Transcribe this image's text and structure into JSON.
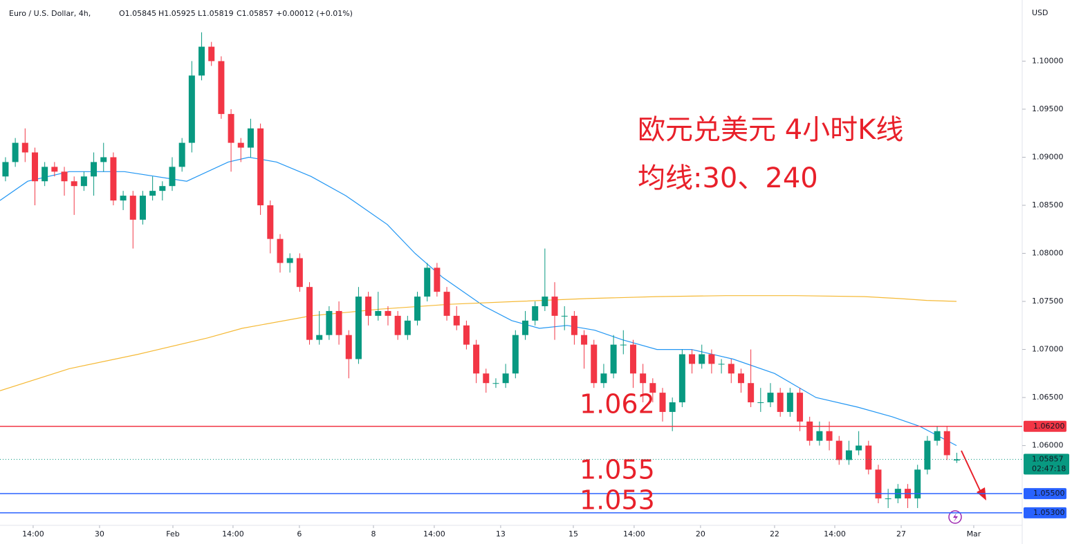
{
  "chart_data": {
    "type": "candlestick",
    "symbol": "Euro / U.S. Dollar, 4h,",
    "ohlc_header": [
      "O1.05845",
      "H1.05925",
      "L1.05819",
      "C1.05857",
      "+0.00012 (+0.01%)"
    ],
    "currency": "USD",
    "title": "欧元兑美元 4小时K线",
    "subtitle": "均线:30、240",
    "up_color": "#089981",
    "down_color": "#f23645",
    "open": [
      1.088,
      1.0895,
      1.0915,
      1.0905,
      1.0875,
      1.089,
      1.0885,
      1.0875,
      1.087,
      1.088,
      1.0895,
      1.09,
      1.0855,
      1.086,
      1.0835,
      1.086,
      1.0865,
      1.087,
      1.089,
      1.0915,
      1.0985,
      1.1015,
      1.1,
      1.0945,
      1.0915,
      1.091,
      1.093,
      1.085,
      1.0815,
      1.079,
      1.0795,
      1.0765,
      1.071,
      1.0715,
      1.074,
      1.0715,
      1.069,
      1.0755,
      1.0735,
      1.074,
      1.0735,
      1.0715,
      1.073,
      1.0755,
      1.0785,
      1.076,
      1.0735,
      1.0725,
      1.0705,
      1.0675,
      1.0665,
      1.0665,
      1.0675,
      1.0715,
      1.073,
      1.0745,
      1.0755,
      1.0735,
      1.0735,
      1.0715,
      1.0705,
      1.0665,
      1.0675,
      1.0705,
      1.0705,
      1.0675,
      1.0665,
      1.0655,
      1.0635,
      1.0645,
      1.0695,
      1.0685,
      1.0695,
      1.0685,
      1.0685,
      1.0675,
      1.0665,
      1.0645,
      1.0645,
      1.0655,
      1.0635,
      1.0655,
      1.0625,
      1.0605,
      1.0615,
      1.0605,
      1.0585,
      1.0595,
      1.06,
      1.0575,
      1.0545,
      1.0545,
      1.0555,
      1.0545,
      1.0575,
      1.0605,
      1.0615,
      1.05845
    ],
    "high": [
      1.09,
      1.092,
      1.093,
      1.091,
      1.0895,
      1.0895,
      1.089,
      1.088,
      1.0885,
      1.0905,
      1.0915,
      1.0905,
      1.0865,
      1.0865,
      1.0865,
      1.088,
      1.0875,
      1.09,
      1.092,
      1.1,
      1.103,
      1.102,
      1.1005,
      1.095,
      1.092,
      1.094,
      1.0935,
      1.0855,
      1.082,
      1.08,
      1.08,
      1.077,
      1.074,
      1.0745,
      1.075,
      1.072,
      1.0765,
      1.076,
      1.076,
      1.0745,
      1.074,
      1.0735,
      1.076,
      1.079,
      1.079,
      1.0765,
      1.0745,
      1.073,
      1.071,
      1.068,
      1.067,
      1.0685,
      1.072,
      1.074,
      1.075,
      1.0805,
      1.077,
      1.0745,
      1.074,
      1.072,
      1.071,
      1.0685,
      1.0715,
      1.072,
      1.071,
      1.0685,
      1.067,
      1.066,
      1.065,
      1.07,
      1.07,
      1.0705,
      1.07,
      1.069,
      1.069,
      1.068,
      1.07,
      1.066,
      1.0665,
      1.066,
      1.066,
      1.066,
      1.063,
      1.0625,
      1.0625,
      1.061,
      1.0605,
      1.0615,
      1.0605,
      1.058,
      1.0555,
      1.056,
      1.056,
      1.058,
      1.061,
      1.062,
      1.062,
      1.05925
    ],
    "low": [
      1.0875,
      1.089,
      1.0895,
      1.085,
      1.087,
      1.088,
      1.086,
      1.084,
      1.0865,
      1.086,
      1.0885,
      1.085,
      1.0845,
      1.0805,
      1.083,
      1.0855,
      1.0855,
      1.0865,
      1.0885,
      1.0905,
      1.098,
      1.0995,
      1.094,
      1.0885,
      1.0895,
      1.09,
      1.084,
      1.08,
      1.078,
      1.078,
      1.076,
      1.0705,
      1.0705,
      1.071,
      1.0705,
      1.067,
      1.0685,
      1.0725,
      1.073,
      1.0725,
      1.071,
      1.071,
      1.0725,
      1.075,
      1.0755,
      1.073,
      1.072,
      1.07,
      1.0665,
      1.0655,
      1.066,
      1.066,
      1.067,
      1.071,
      1.0725,
      1.074,
      1.071,
      1.072,
      1.0705,
      1.068,
      1.066,
      1.066,
      1.067,
      1.0695,
      1.066,
      1.0645,
      1.0645,
      1.0625,
      1.0615,
      1.064,
      1.0675,
      1.068,
      1.0675,
      1.0675,
      1.0665,
      1.0655,
      1.064,
      1.0635,
      1.064,
      1.063,
      1.063,
      1.0615,
      1.06,
      1.06,
      1.0595,
      1.058,
      1.058,
      1.059,
      1.057,
      1.054,
      1.0535,
      1.054,
      1.0535,
      1.0535,
      1.057,
      1.06,
      1.0585,
      1.05819
    ],
    "close": [
      1.0895,
      1.0915,
      1.0905,
      1.0875,
      1.089,
      1.0885,
      1.0875,
      1.087,
      1.088,
      1.0895,
      1.09,
      1.0855,
      1.086,
      1.0835,
      1.086,
      1.0865,
      1.087,
      1.089,
      1.0915,
      1.0985,
      1.1015,
      1.1,
      1.0945,
      1.0915,
      1.091,
      1.093,
      1.085,
      1.0815,
      1.079,
      1.0795,
      1.0765,
      1.071,
      1.0715,
      1.074,
      1.0715,
      1.069,
      1.0755,
      1.0735,
      1.074,
      1.0735,
      1.0715,
      1.073,
      1.0755,
      1.0785,
      1.076,
      1.0735,
      1.0725,
      1.0705,
      1.0675,
      1.0665,
      1.0665,
      1.0675,
      1.0715,
      1.073,
      1.0745,
      1.0755,
      1.0735,
      1.0735,
      1.0715,
      1.0705,
      1.0665,
      1.0675,
      1.0705,
      1.0705,
      1.0675,
      1.0665,
      1.0655,
      1.0635,
      1.0645,
      1.0695,
      1.0685,
      1.0695,
      1.0685,
      1.0685,
      1.0675,
      1.0665,
      1.0645,
      1.0645,
      1.0655,
      1.0635,
      1.0655,
      1.0625,
      1.0605,
      1.0615,
      1.0605,
      1.0585,
      1.0595,
      1.06,
      1.0575,
      1.0545,
      1.0545,
      1.0555,
      1.0545,
      1.0575,
      1.0605,
      1.0615,
      1.059,
      1.05857
    ],
    "ma": [
      {
        "color": "#2196f3",
        "x": [
          -0.56,
          2.26,
          6.49,
          12.13,
          18.48,
          22.71,
          24.82,
          27.64,
          31.17,
          34.7,
          38.93,
          41.75,
          44.57,
          48.8,
          51.62,
          54.44,
          57.26,
          60.08,
          62.91,
          66.43,
          69.96,
          74.19,
          78.42,
          82.65,
          86.89,
          90.41,
          93.23,
          96.97
        ],
        "values": [
          1.0855,
          1.0875,
          1.0885,
          1.0885,
          1.0875,
          1.0895,
          1.09,
          1.0895,
          1.088,
          1.086,
          1.083,
          1.08,
          1.0775,
          1.0745,
          1.073,
          1.0722,
          1.0725,
          1.072,
          1.071,
          1.07,
          1.07,
          1.069,
          1.0675,
          1.065,
          1.064,
          1.063,
          1.062,
          1.06
        ]
      },
      {
        "color": "#f5b935",
        "x": [
          -0.56,
          6.49,
          13.54,
          20.59,
          24.12,
          31.17,
          38.22,
          45.28,
          52.33,
          59.38,
          66.43,
          73.48,
          80.54,
          87.59,
          91.11,
          93.94,
          96.97
        ],
        "values": [
          1.0657,
          1.068,
          1.0695,
          1.0712,
          1.0722,
          1.0735,
          1.0742,
          1.0747,
          1.075,
          1.0753,
          1.0755,
          1.0756,
          1.0756,
          1.0755,
          1.0753,
          1.0751,
          1.075
        ]
      }
    ],
    "levels": [
      {
        "value": 1.062,
        "label": "1.06200",
        "annotation": "1.062",
        "color": "#f23645"
      },
      {
        "value": 1.055,
        "label": "1.05500",
        "annotation": "1.055",
        "color": "#2962ff"
      },
      {
        "value": 1.053,
        "label": "1.05300",
        "annotation": "1.053",
        "color": "#2962ff"
      }
    ],
    "last_price": {
      "value": 1.05857,
      "label": "1.05857",
      "countdown": "02:47:18"
    },
    "xlim": [
      -0.56,
      103.67
    ],
    "ylim": [
      1.0517,
      1.106
    ],
    "yticks": [
      {
        "value": 1.06,
        "label": "1.06000"
      },
      {
        "value": 1.065,
        "label": "1.06500"
      },
      {
        "value": 1.07,
        "label": "1.07000"
      },
      {
        "value": 1.075,
        "label": "1.07500"
      },
      {
        "value": 1.08,
        "label": "1.08000"
      },
      {
        "value": 1.085,
        "label": "1.08500"
      },
      {
        "value": 1.09,
        "label": "1.09000"
      },
      {
        "value": 1.095,
        "label": "1.09500"
      },
      {
        "value": 1.1,
        "label": "1.10000"
      }
    ],
    "xticks": [
      {
        "value": 2.82,
        "label": "14:00"
      },
      {
        "value": 9.59,
        "label": "30"
      },
      {
        "value": 17.07,
        "label": "Feb"
      },
      {
        "value": 23.2,
        "label": "14:00"
      },
      {
        "value": 29.97,
        "label": "6"
      },
      {
        "value": 37.52,
        "label": "8"
      },
      {
        "value": 43.72,
        "label": "14:00"
      },
      {
        "value": 50.49,
        "label": "13"
      },
      {
        "value": 57.9,
        "label": "15"
      },
      {
        "value": 64.1,
        "label": "14:00"
      },
      {
        "value": 70.87,
        "label": "20"
      },
      {
        "value": 78.42,
        "label": "22"
      },
      {
        "value": 84.56,
        "label": "14:00"
      },
      {
        "value": 91.33,
        "label": "27"
      },
      {
        "value": 98.73,
        "label": "Mar"
      }
    ]
  }
}
